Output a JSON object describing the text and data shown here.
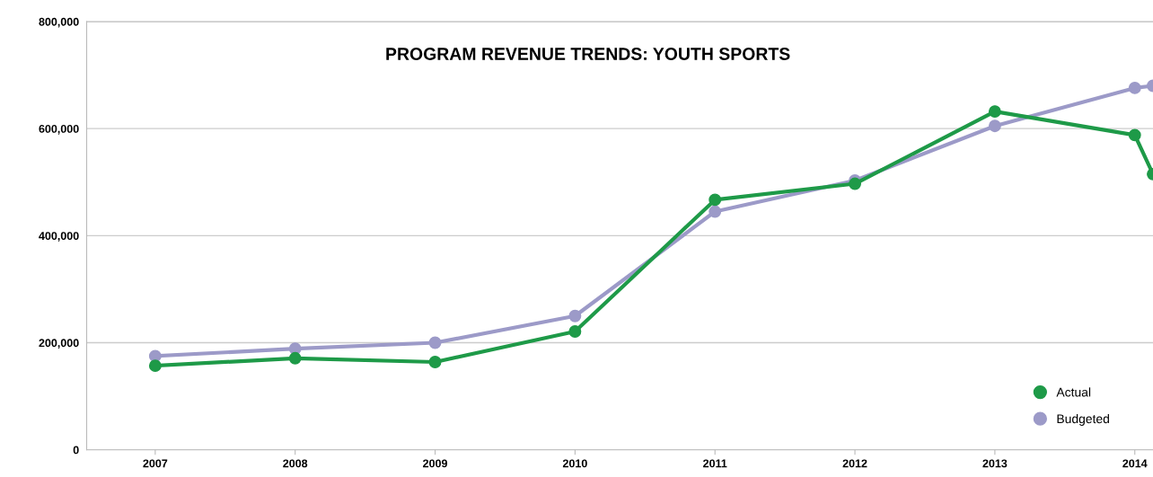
{
  "chart_data": {
    "type": "line",
    "title": "PROGRAM REVENUE TRENDS: YOUTH SPORTS",
    "x": [
      2007,
      2008,
      2009,
      2010,
      2011,
      2012,
      2013,
      2014,
      2014.13
    ],
    "series": [
      {
        "name": "Actual",
        "color": "#1e9a48",
        "values": [
          157000,
          171000,
          164000,
          221000,
          467000,
          497000,
          632000,
          588000,
          515000
        ]
      },
      {
        "name": "Budgeted",
        "color": "#9c9ac8",
        "values": [
          175000,
          189000,
          200000,
          250000,
          445000,
          503000,
          605000,
          676000,
          680000
        ]
      }
    ],
    "xlim": [
      2006.51,
      2014.13
    ],
    "xticks": [
      2007,
      2008,
      2009,
      2010,
      2011,
      2012,
      2013,
      2014
    ],
    "ylim": [
      0,
      800000
    ],
    "yticks": [
      {
        "value": 0,
        "label": "0"
      },
      {
        "value": 200000,
        "label": "200,000"
      },
      {
        "value": 400000,
        "label": "400,000"
      },
      {
        "value": 600000,
        "label": "600,000"
      },
      {
        "value": 800000,
        "label": "800,000"
      }
    ],
    "grid": "y",
    "legend": "bottom right",
    "marker": "circle",
    "line_style": "solid"
  }
}
